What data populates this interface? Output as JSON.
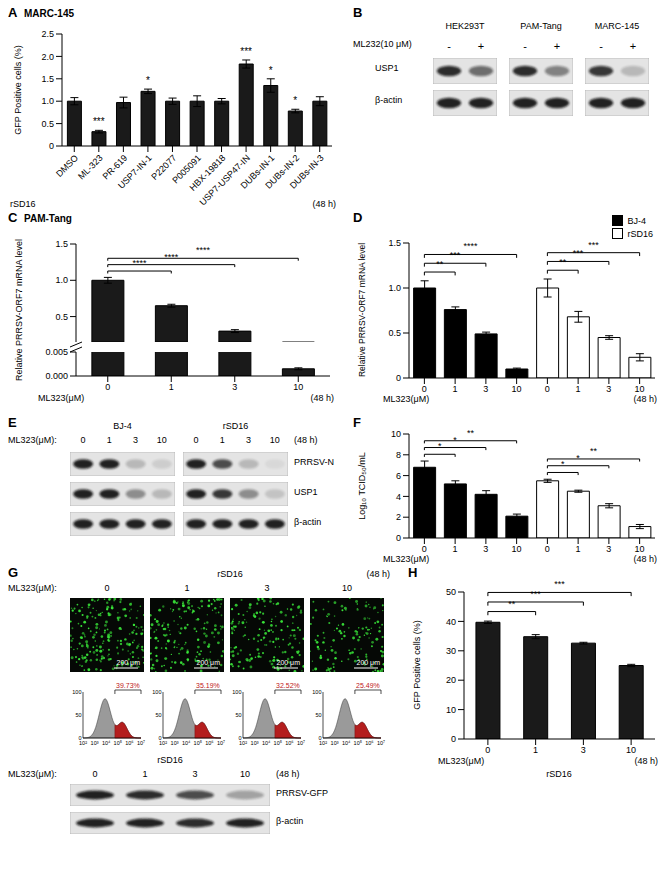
{
  "chart_data": [
    {
      "panel": "A",
      "type": "bar",
      "title": "MARC-145",
      "y_label": "GFP Positive cells (%)",
      "x_label": "rSD16",
      "x_note": "(48 h)",
      "categories": [
        "DMSO",
        "ML-323",
        "PR-619",
        "USP7-IN-1",
        "P22077",
        "P005091",
        "HBX-19818",
        "USP7-USP47-IN",
        "DUBs-IN-1",
        "DUBs-IN-2",
        "DUBs-IN-3"
      ],
      "values": [
        1.0,
        0.32,
        0.97,
        1.22,
        1.0,
        1.0,
        1.0,
        1.83,
        1.35,
        0.78,
        1.0
      ],
      "errors": [
        0.08,
        0.03,
        0.12,
        0.05,
        0.07,
        0.12,
        0.06,
        0.09,
        0.15,
        0.04,
        0.1
      ],
      "significance": [
        null,
        "***",
        null,
        "*",
        null,
        null,
        null,
        "***",
        "*",
        "*",
        null
      ],
      "color": "#1a1a1a",
      "ylim": [
        0,
        2.5
      ],
      "yticks": [
        0,
        0.5,
        {
          "value": 1,
          "label": "1.0"
        },
        1.5,
        {
          "value": 2,
          "label": "2.0"
        },
        2.5
      ]
    },
    {
      "panel": "C",
      "type": "bar",
      "title": "PAM-Tang",
      "y_label": "Relative PRRSV-ORF7 mRNA level",
      "x_label": "ML323(μM)",
      "x_note": "(48 h)",
      "categories": [
        "0",
        "1",
        "3",
        "10"
      ],
      "values": [
        1.0,
        0.65,
        0.3,
        0.0015
      ],
      "errors": [
        0.04,
        0.02,
        0.02,
        0.0002
      ],
      "color": "#1a1a1a",
      "segments": [
        {
          "ylim": [
            0,
            0.005
          ],
          "yticks": [
            {
              "value": 0,
              "label": "0.000"
            },
            {
              "value": 0.005,
              "label": "0.005"
            }
          ]
        },
        {
          "ylim": [
            0.15,
            1.5
          ],
          "yticks": [
            0.5,
            {
              "value": 1,
              "label": "1.0"
            },
            1.5
          ]
        }
      ],
      "comparisons": [
        {
          "from": 0,
          "to": 1,
          "label": "****"
        },
        {
          "from": 0,
          "to": 2,
          "label": "****"
        },
        {
          "from": 0,
          "to": 3,
          "label": "****"
        }
      ]
    },
    {
      "panel": "D",
      "type": "bar",
      "y_label": "Relative PRRSV-ORF7 mRNA level",
      "x_label": "ML323(μM)",
      "x_note": "(48 h)",
      "legend": "top-right",
      "categories": [
        "0",
        "1",
        "3",
        "10",
        "0",
        "1",
        "3",
        "10"
      ],
      "series": [
        {
          "name": "BJ-4",
          "color": "#000000",
          "values": [
            1.0,
            0.76,
            0.49,
            0.1,
            null,
            null,
            null,
            null
          ],
          "errors": [
            0.08,
            0.03,
            0.02,
            0.01,
            null,
            null,
            null,
            null
          ]
        },
        {
          "name": "rSD16",
          "color": "#ffffff",
          "values": [
            null,
            null,
            null,
            null,
            1.0,
            0.68,
            0.45,
            0.23
          ],
          "errors": [
            null,
            null,
            null,
            null,
            0.1,
            0.06,
            0.02,
            0.04
          ]
        }
      ],
      "ylim": [
        0,
        1.5
      ],
      "yticks": [
        0,
        0.5,
        {
          "value": 1,
          "label": "1.0"
        },
        1.5
      ],
      "comparisons": [
        {
          "from": 0,
          "to": 1,
          "label": "**"
        },
        {
          "from": 0,
          "to": 2,
          "label": "***"
        },
        {
          "from": 0,
          "to": 3,
          "label": "****"
        },
        {
          "from": 4,
          "to": 5,
          "label": "**"
        },
        {
          "from": 4,
          "to": 6,
          "label": "***"
        },
        {
          "from": 4,
          "to": 7,
          "label": "***"
        }
      ]
    },
    {
      "panel": "F",
      "type": "bar",
      "y_label": "Log₁₀ TCID₅₀/mL",
      "x_label": "ML323(μM)",
      "x_note": "(48 h)",
      "categories": [
        "0",
        "1",
        "3",
        "10",
        "0",
        "1",
        "3",
        "10"
      ],
      "series": [
        {
          "name": "BJ-4",
          "color": "#000000",
          "values": [
            6.8,
            5.2,
            4.2,
            2.1,
            null,
            null,
            null,
            null
          ],
          "errors": [
            0.6,
            0.3,
            0.35,
            0.2,
            null,
            null,
            null,
            null
          ]
        },
        {
          "name": "rSD16",
          "color": "#ffffff",
          "values": [
            null,
            null,
            null,
            null,
            5.5,
            4.5,
            3.1,
            1.1
          ],
          "errors": [
            null,
            null,
            null,
            null,
            0.15,
            0.1,
            0.2,
            0.2
          ]
        }
      ],
      "ylim": [
        0,
        10
      ],
      "yticks": [
        0,
        2,
        4,
        6,
        8,
        10
      ],
      "comparisons": [
        {
          "from": 0,
          "to": 1,
          "label": "*"
        },
        {
          "from": 0,
          "to": 2,
          "label": "*"
        },
        {
          "from": 0,
          "to": 3,
          "label": "**"
        },
        {
          "from": 4,
          "to": 5,
          "label": "*"
        },
        {
          "from": 4,
          "to": 6,
          "label": "*"
        },
        {
          "from": 4,
          "to": 7,
          "label": "**"
        }
      ]
    },
    {
      "panel": "H",
      "type": "bar",
      "y_label": "GFP Positive cells (%)",
      "x_label": "ML323(μM)",
      "x_note": "(48 h)",
      "x_sublabel": "rSD16",
      "categories": [
        "0",
        "1",
        "3",
        "10"
      ],
      "values": [
        39.7,
        34.8,
        32.6,
        25.0
      ],
      "errors": [
        0.4,
        0.7,
        0.3,
        0.4
      ],
      "color": "#1a1a1a",
      "ylim": [
        0,
        50
      ],
      "yticks": [
        0,
        10,
        20,
        30,
        40,
        50
      ],
      "comparisons": [
        {
          "from": 0,
          "to": 1,
          "label": "**"
        },
        {
          "from": 0,
          "to": 2,
          "label": "***"
        },
        {
          "from": 0,
          "to": 3,
          "label": "***"
        }
      ]
    }
  ],
  "panels": [
    {
      "panel": "B",
      "treatment_label": "ML232(10 μM)",
      "lane_labels": [
        "-",
        "+"
      ],
      "row_labels": [
        "USP1",
        "β-actin"
      ],
      "groups": [
        {
          "name": "HEK293T",
          "intensity": [
            [
              0.85,
              0.55
            ],
            [
              0.9,
              0.9
            ]
          ]
        },
        {
          "name": "PAM-Tang",
          "intensity": [
            [
              0.85,
              0.45
            ],
            [
              0.9,
              0.9
            ]
          ]
        },
        {
          "name": "MARC-145",
          "intensity": [
            [
              0.8,
              0.2
            ],
            [
              0.9,
              0.9
            ]
          ]
        }
      ]
    },
    {
      "panel": "E",
      "treatment_label": "ML323(μM):",
      "lane_labels": [
        "0",
        "1",
        "3",
        "10"
      ],
      "time": "(48 h)",
      "row_labels": [
        "PRRSV-N",
        "USP1",
        "β-actin"
      ],
      "groups": [
        {
          "name": "BJ-4",
          "intensity": [
            [
              0.9,
              0.9,
              0.2,
              0.1
            ],
            [
              0.9,
              0.9,
              0.4,
              0.2
            ],
            [
              0.9,
              0.9,
              0.9,
              0.9
            ]
          ]
        },
        {
          "name": "rSD16",
          "intensity": [
            [
              0.9,
              0.7,
              0.2,
              0.05
            ],
            [
              0.9,
              0.8,
              0.4,
              0.15
            ],
            [
              0.9,
              0.9,
              0.9,
              0.9
            ]
          ]
        }
      ]
    },
    {
      "panel": "G",
      "header": "rSD16",
      "treatment_label": "ML323(μM):",
      "lane_labels": [
        "0",
        "1",
        "3",
        "10"
      ],
      "time": "(48 h)",
      "scale_bar": "200 μm",
      "flow_percent": [
        {
          "value": 39.73,
          "label": "39.73%"
        },
        {
          "value": 35.19,
          "label": "35.19%"
        },
        {
          "value": 32.52,
          "label": "32.52%"
        },
        {
          "value": 25.49,
          "label": "25.49%"
        }
      ],
      "flow_xticks": [
        {
          "value": 100,
          "label": "10²"
        },
        {
          "value": 1000,
          "label": "10³"
        },
        {
          "value": 10000,
          "label": "10⁴"
        },
        {
          "value": 100000,
          "label": "10⁵"
        },
        {
          "value": 1000000,
          "label": "10⁶"
        },
        {
          "value": 10000000,
          "label": "10⁷"
        }
      ],
      "flow_yticks": [
        0,
        50,
        100
      ],
      "blot": {
        "header": "rSD16",
        "treatment_label": "ML323(μM):",
        "lane_labels": [
          "0",
          "1",
          "3",
          "10"
        ],
        "time": "(48 h)",
        "row_labels": [
          "PRRSV-GFP",
          "β-actin"
        ],
        "intensity": [
          [
            0.9,
            0.85,
            0.7,
            0.3
          ],
          [
            0.9,
            0.9,
            0.85,
            0.9
          ]
        ]
      }
    }
  ]
}
